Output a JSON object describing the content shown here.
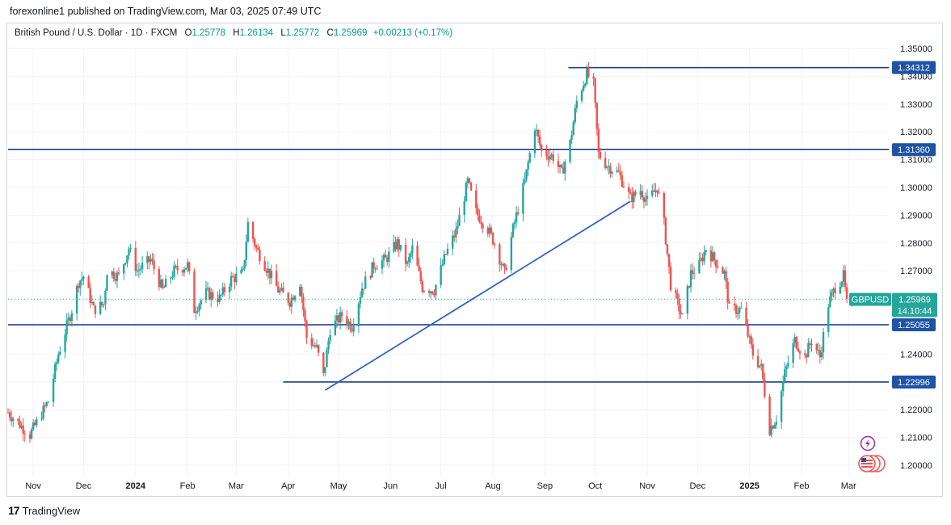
{
  "header": {
    "published_text": "forexonline1 published on TradingView.com, Mar 03, 2025 07:49 UTC"
  },
  "legend": {
    "symbol": "British Pound / U.S. Dollar · 1D · FXCM",
    "open_label": "O",
    "open": "1.25778",
    "high_label": "H",
    "high": "1.26134",
    "low_label": "L",
    "low": "1.25772",
    "close_label": "C",
    "close": "1.25969",
    "change": "+0.00213 (+0.17%)"
  },
  "footer": {
    "brand": "TradingView",
    "logo_text": "17"
  },
  "colors": {
    "up": "#26a69a",
    "down": "#ef5350",
    "line": "#2962ff",
    "hline": "#1e3f8a",
    "grid": "#f0f3fa",
    "tag": "#1e53a6",
    "current": "#26a69a"
  },
  "chart_data": {
    "type": "candlestick",
    "ylim": [
      1.195,
      1.355
    ],
    "y_ticks": [
      "1.35000",
      "1.34000",
      "1.33000",
      "1.32000",
      "1.31000",
      "1.30000",
      "1.29000",
      "1.28000",
      "1.27000",
      "1.26000",
      "1.25000",
      "1.24000",
      "1.23000",
      "1.22000",
      "1.21000",
      "1.20000"
    ],
    "x_ticks": [
      {
        "label": "Nov",
        "date": "2023-11-01"
      },
      {
        "label": "Dec",
        "date": "2023-12-01"
      },
      {
        "label": "2024",
        "date": "2024-01-01"
      },
      {
        "label": "Feb",
        "date": "2024-02-01"
      },
      {
        "label": "Mar",
        "date": "2024-03-01"
      },
      {
        "label": "Apr",
        "date": "2024-04-01"
      },
      {
        "label": "May",
        "date": "2024-05-01"
      },
      {
        "label": "Jun",
        "date": "2024-06-01"
      },
      {
        "label": "Jul",
        "date": "2024-07-01"
      },
      {
        "label": "Aug",
        "date": "2024-08-01"
      },
      {
        "label": "Sep",
        "date": "2024-09-01"
      },
      {
        "label": "Oct",
        "date": "2024-10-01"
      },
      {
        "label": "Nov",
        "date": "2024-11-01"
      },
      {
        "label": "Dec",
        "date": "2024-12-01"
      },
      {
        "label": "2025",
        "date": "2025-01-01"
      },
      {
        "label": "Feb",
        "date": "2025-02-01"
      },
      {
        "label": "Mar",
        "date": "2025-03-01"
      }
    ],
    "x_range": [
      "2023-10-17",
      "2025-03-25"
    ],
    "price_path": [
      [
        "2023-10-17",
        1.219
      ],
      [
        "2023-10-25",
        1.214
      ],
      [
        "2023-10-30",
        1.211
      ],
      [
        "2023-11-10",
        1.223
      ],
      [
        "2023-11-16",
        1.24
      ],
      [
        "2023-11-24",
        1.256
      ],
      [
        "2023-11-28",
        1.266
      ],
      [
        "2023-12-01",
        1.268
      ],
      [
        "2023-12-07",
        1.256
      ],
      [
        "2023-12-13",
        1.258
      ],
      [
        "2023-12-15",
        1.27
      ],
      [
        "2023-12-22",
        1.268
      ],
      [
        "2023-12-28",
        1.278
      ],
      [
        "2024-01-02",
        1.27
      ],
      [
        "2024-01-10",
        1.274
      ],
      [
        "2024-01-17",
        1.263
      ],
      [
        "2024-01-24",
        1.27
      ],
      [
        "2024-02-01",
        1.272
      ],
      [
        "2024-02-05",
        1.256
      ],
      [
        "2024-02-12",
        1.262
      ],
      [
        "2024-02-20",
        1.26
      ],
      [
        "2024-02-27",
        1.267
      ],
      [
        "2024-03-05",
        1.269
      ],
      [
        "2024-03-08",
        1.287
      ],
      [
        "2024-03-13",
        1.278
      ],
      [
        "2024-03-20",
        1.27
      ],
      [
        "2024-03-26",
        1.263
      ],
      [
        "2024-04-02",
        1.259
      ],
      [
        "2024-04-08",
        1.266
      ],
      [
        "2024-04-12",
        1.246
      ],
      [
        "2024-04-18",
        1.242
      ],
      [
        "2024-04-22",
        1.232
      ],
      [
        "2024-04-26",
        1.249
      ],
      [
        "2024-05-03",
        1.254
      ],
      [
        "2024-05-09",
        1.25
      ],
      [
        "2024-05-15",
        1.264
      ],
      [
        "2024-05-22",
        1.272
      ],
      [
        "2024-05-29",
        1.274
      ],
      [
        "2024-06-05",
        1.28
      ],
      [
        "2024-06-11",
        1.272
      ],
      [
        "2024-06-14",
        1.278
      ],
      [
        "2024-06-20",
        1.264
      ],
      [
        "2024-06-27",
        1.263
      ],
      [
        "2024-07-04",
        1.276
      ],
      [
        "2024-07-10",
        1.284
      ],
      [
        "2024-07-17",
        1.302
      ],
      [
        "2024-07-22",
        1.291
      ],
      [
        "2024-07-29",
        1.285
      ],
      [
        "2024-08-02",
        1.28
      ],
      [
        "2024-08-08",
        1.269
      ],
      [
        "2024-08-13",
        1.285
      ],
      [
        "2024-08-20",
        1.302
      ],
      [
        "2024-08-26",
        1.322
      ],
      [
        "2024-08-30",
        1.313
      ],
      [
        "2024-09-06",
        1.311
      ],
      [
        "2024-09-11",
        1.305
      ],
      [
        "2024-09-16",
        1.316
      ],
      [
        "2024-09-20",
        1.331
      ],
      [
        "2024-09-26",
        1.341
      ],
      [
        "2024-09-30",
        1.337
      ],
      [
        "2024-10-03",
        1.312
      ],
      [
        "2024-10-08",
        1.308
      ],
      [
        "2024-10-15",
        1.305
      ],
      [
        "2024-10-22",
        1.296
      ],
      [
        "2024-10-28",
        1.299
      ],
      [
        "2024-11-01",
        1.295
      ],
      [
        "2024-11-07",
        1.3
      ],
      [
        "2024-11-11",
        1.287
      ],
      [
        "2024-11-15",
        1.265
      ],
      [
        "2024-11-22",
        1.253
      ],
      [
        "2024-11-27",
        1.269
      ],
      [
        "2024-12-02",
        1.272
      ],
      [
        "2024-12-06",
        1.278
      ],
      [
        "2024-12-11",
        1.274
      ],
      [
        "2024-12-17",
        1.269
      ],
      [
        "2024-12-20",
        1.256
      ],
      [
        "2024-12-27",
        1.256
      ],
      [
        "2025-01-03",
        1.24
      ],
      [
        "2025-01-08",
        1.235
      ],
      [
        "2025-01-13",
        1.213
      ],
      [
        "2025-01-17",
        1.217
      ],
      [
        "2025-01-22",
        1.233
      ],
      [
        "2025-01-28",
        1.245
      ],
      [
        "2025-02-03",
        1.239
      ],
      [
        "2025-02-07",
        1.245
      ],
      [
        "2025-02-12",
        1.239
      ],
      [
        "2025-02-17",
        1.258
      ],
      [
        "2025-02-21",
        1.264
      ],
      [
        "2025-02-26",
        1.268
      ],
      [
        "2025-02-28",
        1.258
      ],
      [
        "2025-03-03",
        1.2597
      ]
    ],
    "horizontal_levels": [
      {
        "value": 1.34312,
        "label": "1.34312",
        "from": "2024-09-15"
      },
      {
        "value": 1.3136,
        "label": "1.31360",
        "from": "2023-10-17"
      },
      {
        "value": 1.25055,
        "label": "1.25055",
        "from": "2023-10-17"
      },
      {
        "value": 1.22996,
        "label": "1.22996",
        "from": "2024-03-29"
      }
    ],
    "trend_line": {
      "from": [
        "2024-04-23",
        1.227
      ],
      "to": [
        "2024-10-22",
        1.295
      ]
    },
    "current": {
      "symbol": "GBPUSD",
      "price": "1.25969",
      "countdown": "14:10:44",
      "value": 1.25969
    }
  }
}
